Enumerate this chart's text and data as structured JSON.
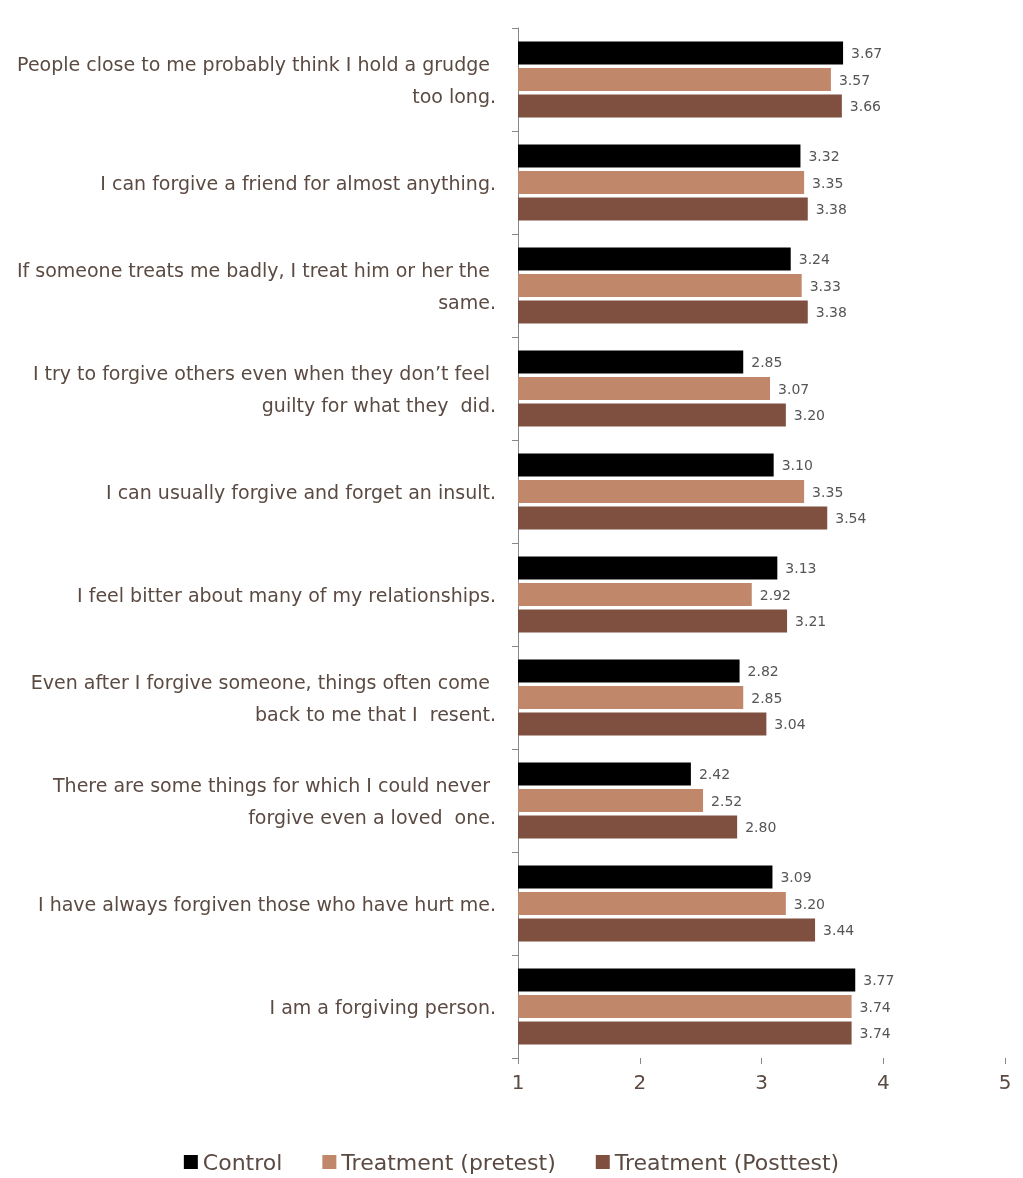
{
  "chart_data": {
    "type": "bar",
    "orientation": "horizontal",
    "categories": [
      "People close to me probably think I hold a grudge too long.",
      "I can forgive a friend for almost anything.",
      "If someone treats me badly, I treat him or her the same.",
      "I try to forgive others even when they don’t feel guilty for what they  did.",
      "I can usually forgive and forget an insult.",
      "I feel bitter about many of my relationships.",
      "Even after I forgive someone, things often come back to me that I  resent.",
      "There are some things for which I could never forgive even a loved  one.",
      "I have always forgiven those who have hurt me.",
      "I am a forgiving person."
    ],
    "series": [
      {
        "name": "Control",
        "color": "#000000",
        "values": [
          3.67,
          3.32,
          3.24,
          2.85,
          3.1,
          3.13,
          2.82,
          2.42,
          3.09,
          3.77
        ],
        "value_labels": [
          "3.67",
          "3.32",
          "3.24",
          "2.85",
          "3.10",
          "3.13",
          "2.82",
          "2.42",
          "3.09",
          "3.77"
        ]
      },
      {
        "name": "Treatment (pretest)",
        "color": "#c0876a",
        "values": [
          3.57,
          3.35,
          3.33,
          3.07,
          3.35,
          2.92,
          2.85,
          2.52,
          3.2,
          3.74
        ],
        "value_labels": [
          "3.57",
          "3.35",
          "3.33",
          "3.07",
          "3.35",
          "2.92",
          "2.85",
          "2.52",
          "3.20",
          "3.74"
        ]
      },
      {
        "name": "Treatment (Posttest)",
        "color": "#7f5040",
        "values": [
          3.66,
          3.38,
          3.38,
          3.2,
          3.54,
          3.21,
          3.04,
          2.8,
          3.44,
          3.74
        ],
        "value_labels": [
          "3.66",
          "3.38",
          "3.38",
          "3.20",
          "3.54",
          "3.21",
          "3.04",
          "2.80",
          "3.44",
          "3.74"
        ]
      }
    ],
    "xlim": [
      1,
      5
    ],
    "xticks": [
      1,
      2,
      3,
      4,
      5
    ],
    "legend": "bottom",
    "grid": false
  }
}
